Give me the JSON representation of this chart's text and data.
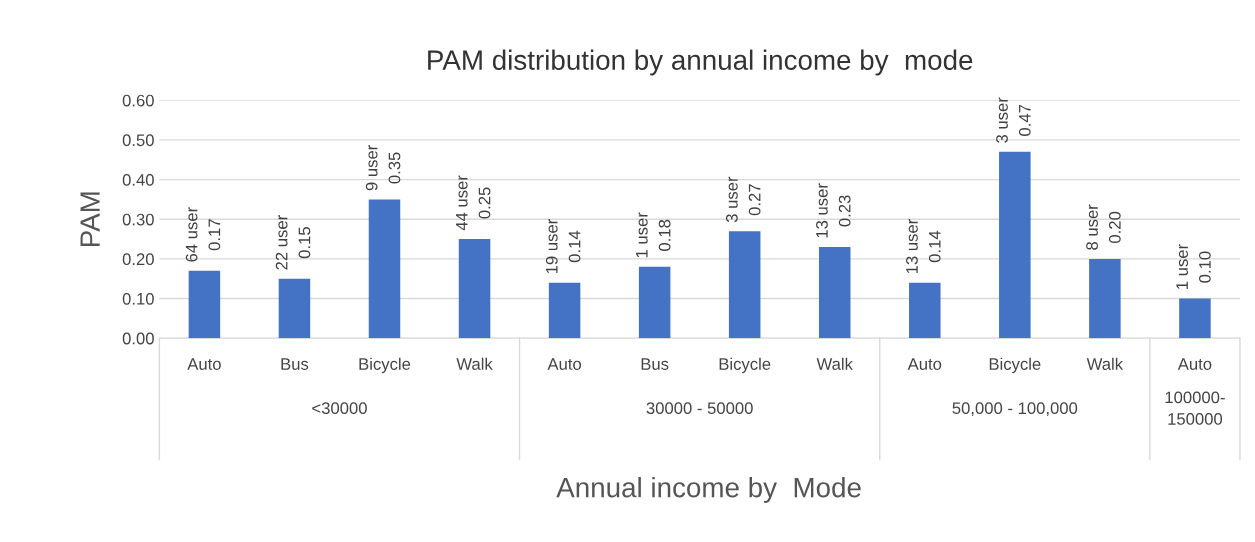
{
  "chart_data": {
    "type": "bar",
    "title": "PAM distribution by annual income by  mode",
    "xlabel": "Annual income by  Mode",
    "ylabel": "PAM",
    "categories": [
      "Auto",
      "Bus",
      "Bicycle",
      "Walk",
      "Auto",
      "Bus",
      "Bicycle",
      "Walk",
      "Auto",
      "Bicycle",
      "Walk",
      "Auto"
    ],
    "values": [
      0.17,
      0.15,
      0.35,
      0.25,
      0.14,
      0.18,
      0.27,
      0.23,
      0.14,
      0.47,
      0.2,
      0.1
    ],
    "value_labels": [
      "64 user\n0.17",
      "22 user\n0.15",
      "9 user\n0.35",
      "44 user\n0.25",
      "19 user\n0.14",
      "1 user\n0.18",
      "3 user\n0.27",
      "13 user\n0.23",
      "13 user\n0.14",
      "3 user\n0.47",
      "8 user\n0.20",
      "1 user\n0.10"
    ],
    "annotations": [
      "<30000",
      "30000 - 50000",
      "50,000 - 100,000",
      "100000-\n150000"
    ],
    "color": "#4472c4",
    "ylim": [
      0,
      0.6
    ],
    "yticks": [
      {
        "value": 0,
        "label": "0.00"
      },
      {
        "value": 0.1,
        "label": "0.10"
      },
      {
        "value": 0.2,
        "label": "0.20"
      },
      {
        "value": 0.3,
        "label": "0.30"
      },
      {
        "value": 0.4,
        "label": "0.40"
      },
      {
        "value": 0.5,
        "label": "0.50"
      },
      {
        "value": 0.6,
        "label": "0.60"
      }
    ],
    "grid": "y"
  }
}
